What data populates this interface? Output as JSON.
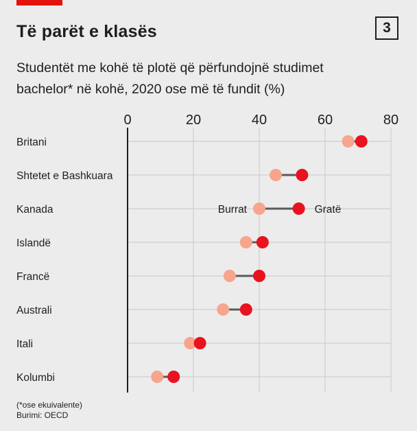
{
  "header": {
    "title": "Të parët e klasës",
    "badge": "3",
    "subtitle_line1": "Studentët me kohë të plotë që përfundojnë studimet",
    "subtitle_line2": "bachelor* në kohë, 2020 ose më të fundit (%)"
  },
  "footer": {
    "note": "(*ose ekuivalente)",
    "source": "Burimi: OECD"
  },
  "colors": {
    "accent": "#e3120b",
    "men": "#f7a58c",
    "women": "#e8131f",
    "connector": "#5a5a5a",
    "grid": "#c8c8c8",
    "background": "#ececec"
  },
  "chart_data": {
    "type": "dumbbell",
    "categories": [
      "Britani",
      "Shtetet e Bashkuara",
      "Kanada",
      "Islandë",
      "Francë",
      "Australi",
      "Itali",
      "Kolumbi"
    ],
    "series": [
      {
        "name": "Burrat",
        "values": [
          67,
          45,
          40,
          36,
          31,
          29,
          19,
          9
        ]
      },
      {
        "name": "Gratë",
        "values": [
          71,
          53,
          52,
          41,
          40,
          36,
          22,
          14
        ]
      }
    ],
    "x_ticks": [
      0,
      20,
      40,
      60,
      80
    ],
    "xlim": [
      0,
      80
    ],
    "grid": true,
    "series_labels_on": "Kanada"
  }
}
